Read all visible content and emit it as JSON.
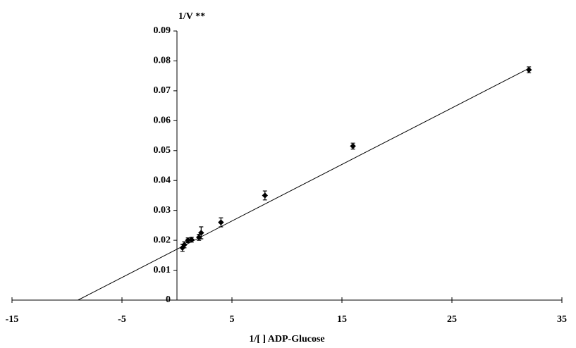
{
  "chart_data": {
    "type": "scatter",
    "y_label": "1/V **",
    "x_label": "1/[ ] ADP-Glucose",
    "xlim": [
      -15,
      35
    ],
    "xticks": [
      -15,
      -5,
      5,
      15,
      25,
      35
    ],
    "ylim": [
      0,
      0.09
    ],
    "yticks": [
      0,
      0.01,
      0.02,
      0.03,
      0.04,
      0.05,
      0.06,
      0.07,
      0.08,
      0.09
    ],
    "series": [
      {
        "kind": "points",
        "color": "#000000",
        "x": [
          0.5,
          0.67,
          1,
          1.33,
          2,
          2.2,
          4,
          8,
          16,
          32
        ],
        "values": [
          0.0175,
          0.0185,
          0.02,
          0.0202,
          0.021,
          0.0225,
          0.026,
          0.035,
          0.0515,
          0.077
        ],
        "errors": [
          0.0012,
          0.001,
          0.0008,
          0.0008,
          0.001,
          0.002,
          0.0015,
          0.0015,
          0.001,
          0.001
        ]
      },
      {
        "kind": "line",
        "color": "#000000",
        "x": [
          -9,
          32
        ],
        "values": [
          0,
          0.0775
        ]
      }
    ]
  }
}
